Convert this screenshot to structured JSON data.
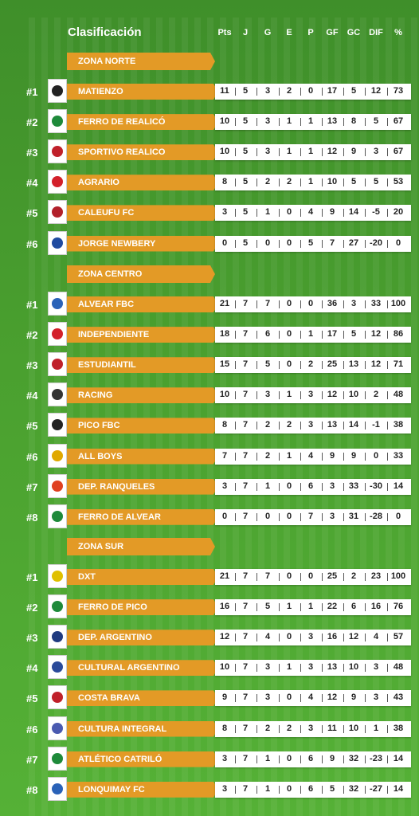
{
  "header": {
    "title": "Clasificación",
    "columns": [
      "Pts",
      "J",
      "G",
      "E",
      "P",
      "GF",
      "GC",
      "DIF",
      "%"
    ]
  },
  "zones": [
    {
      "name": "ZONA NORTE",
      "teams": [
        {
          "rank": "#1",
          "name": "MATIENZO",
          "badge_color": "#222222",
          "stats": [
            "11",
            "5",
            "3",
            "2",
            "0",
            "17",
            "5",
            "12",
            "73"
          ]
        },
        {
          "rank": "#2",
          "name": "FERRO DE REALICÓ",
          "badge_color": "#1e8a3a",
          "stats": [
            "10",
            "5",
            "3",
            "1",
            "1",
            "13",
            "8",
            "5",
            "67"
          ]
        },
        {
          "rank": "#3",
          "name": "SPORTIVO REALICO",
          "badge_color": "#c0202a",
          "stats": [
            "10",
            "5",
            "3",
            "1",
            "1",
            "12",
            "9",
            "3",
            "67"
          ]
        },
        {
          "rank": "#4",
          "name": "AGRARIO",
          "badge_color": "#d3202a",
          "stats": [
            "8",
            "5",
            "2",
            "2",
            "1",
            "10",
            "5",
            "5",
            "53"
          ]
        },
        {
          "rank": "#5",
          "name": "CALEUFU FC",
          "badge_color": "#b2202a",
          "stats": [
            "3",
            "5",
            "1",
            "0",
            "4",
            "9",
            "14",
            "-5",
            "20"
          ]
        },
        {
          "rank": "#6",
          "name": "JORGE NEWBERY",
          "badge_color": "#1f4aa0",
          "stats": [
            "0",
            "5",
            "0",
            "0",
            "5",
            "7",
            "27",
            "-20",
            "0"
          ]
        }
      ]
    },
    {
      "name": "ZONA CENTRO",
      "teams": [
        {
          "rank": "#1",
          "name": "ALVEAR FBC",
          "badge_color": "#2a62b8",
          "stats": [
            "21",
            "7",
            "7",
            "0",
            "0",
            "36",
            "3",
            "33",
            "100"
          ]
        },
        {
          "rank": "#2",
          "name": "INDEPENDIENTE",
          "badge_color": "#d3202a",
          "stats": [
            "18",
            "7",
            "6",
            "0",
            "1",
            "17",
            "5",
            "12",
            "86"
          ]
        },
        {
          "rank": "#3",
          "name": "ESTUDIANTIL",
          "badge_color": "#c0202a",
          "stats": [
            "15",
            "7",
            "5",
            "0",
            "2",
            "25",
            "13",
            "12",
            "71"
          ]
        },
        {
          "rank": "#4",
          "name": "RACING",
          "badge_color": "#333333",
          "stats": [
            "10",
            "7",
            "3",
            "1",
            "3",
            "12",
            "10",
            "2",
            "48"
          ]
        },
        {
          "rank": "#5",
          "name": "PICO FBC",
          "badge_color": "#222222",
          "stats": [
            "8",
            "7",
            "2",
            "2",
            "3",
            "13",
            "14",
            "-1",
            "38"
          ]
        },
        {
          "rank": "#6",
          "name": "ALL BOYS",
          "badge_color": "#e0a800",
          "stats": [
            "7",
            "7",
            "2",
            "1",
            "4",
            "9",
            "9",
            "0",
            "33"
          ]
        },
        {
          "rank": "#7",
          "name": "DEP. RANQUELES",
          "badge_color": "#e04020",
          "stats": [
            "3",
            "7",
            "1",
            "0",
            "6",
            "3",
            "33",
            "-30",
            "14"
          ]
        },
        {
          "rank": "#8",
          "name": "FERRO DE ALVEAR",
          "badge_color": "#1e8a3a",
          "stats": [
            "0",
            "7",
            "0",
            "0",
            "7",
            "3",
            "31",
            "-28",
            "0"
          ]
        }
      ]
    },
    {
      "name": "ZONA SUR",
      "teams": [
        {
          "rank": "#1",
          "name": "DXT",
          "badge_color": "#e0c000",
          "stats": [
            "21",
            "7",
            "7",
            "0",
            "0",
            "25",
            "2",
            "23",
            "100"
          ]
        },
        {
          "rank": "#2",
          "name": "FERRO DE PICO",
          "badge_color": "#1e8a3a",
          "stats": [
            "16",
            "7",
            "5",
            "1",
            "1",
            "22",
            "6",
            "16",
            "76"
          ]
        },
        {
          "rank": "#3",
          "name": "DEP. ARGENTINO",
          "badge_color": "#1f3a80",
          "stats": [
            "12",
            "7",
            "4",
            "0",
            "3",
            "16",
            "12",
            "4",
            "57"
          ]
        },
        {
          "rank": "#4",
          "name": "CULTURAL ARGENTINO",
          "badge_color": "#2a4a9a",
          "stats": [
            "10",
            "7",
            "3",
            "1",
            "3",
            "13",
            "10",
            "3",
            "48"
          ]
        },
        {
          "rank": "#5",
          "name": "COSTA BRAVA",
          "badge_color": "#c0202a",
          "stats": [
            "9",
            "7",
            "3",
            "0",
            "4",
            "12",
            "9",
            "3",
            "43"
          ]
        },
        {
          "rank": "#6",
          "name": "CULTURA INTEGRAL",
          "badge_color": "#4a5ab0",
          "stats": [
            "8",
            "7",
            "2",
            "2",
            "3",
            "11",
            "10",
            "1",
            "38"
          ]
        },
        {
          "rank": "#7",
          "name": "ATLÉTICO CATRILÓ",
          "badge_color": "#1e8a3a",
          "stats": [
            "3",
            "7",
            "1",
            "0",
            "6",
            "9",
            "32",
            "-23",
            "14"
          ]
        },
        {
          "rank": "#8",
          "name": "LONQUIMAY FC",
          "badge_color": "#2a62b8",
          "stats": [
            "3",
            "7",
            "1",
            "0",
            "6",
            "5",
            "32",
            "-27",
            "14"
          ]
        }
      ]
    }
  ]
}
